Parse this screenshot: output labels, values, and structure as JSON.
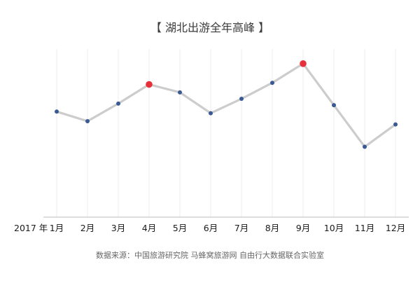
{
  "chart_data": {
    "type": "line",
    "title": "【 湖北出游全年高峰 】",
    "year_label": "2017 年",
    "categories": [
      "1月",
      "2月",
      "3月",
      "4月",
      "5月",
      "6月",
      "7月",
      "8月",
      "9月",
      "10月",
      "11月",
      "12月"
    ],
    "series": [
      {
        "values": [
          53,
          47,
          58,
          70,
          65,
          52,
          61,
          71,
          83,
          57,
          31,
          45
        ]
      }
    ],
    "highlight_indices": [
      3,
      8
    ],
    "ylim": [
      -13,
      100
    ],
    "grid": "vertical",
    "xlabel": "",
    "ylabel": "",
    "source": "数据来源：中国旅游研究院 马蜂窝旅游网 自由行大数据联合实验室",
    "colors": {
      "line": "#cccccc",
      "point": "#3a5a92",
      "highlight": "#e8303a",
      "grid": "#ececec",
      "axis": "#bbbbbb"
    }
  }
}
